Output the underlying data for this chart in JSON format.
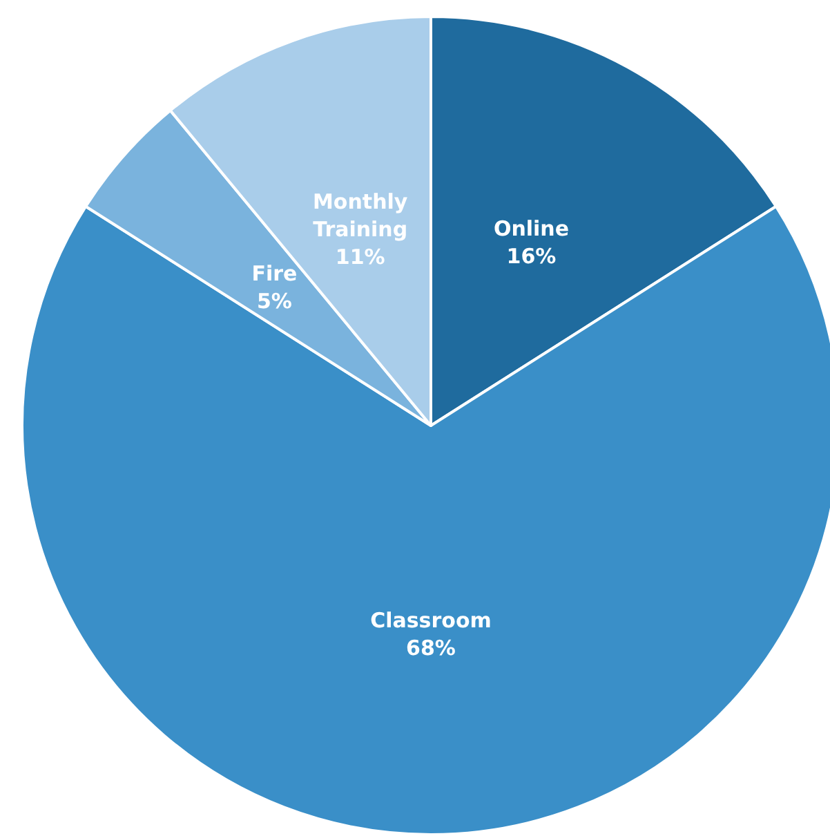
{
  "chart_data": {
    "type": "pie",
    "categories": [
      "Online",
      "Classroom",
      "Fire",
      "Monthly Training"
    ],
    "values": [
      16,
      68,
      5,
      11
    ],
    "colors": [
      "#1f6b9e",
      "#3a8fc8",
      "#7ab3dd",
      "#a9cdea"
    ],
    "value_labels": [
      "16%",
      "68%",
      "5%",
      "11%"
    ],
    "legend": false
  }
}
